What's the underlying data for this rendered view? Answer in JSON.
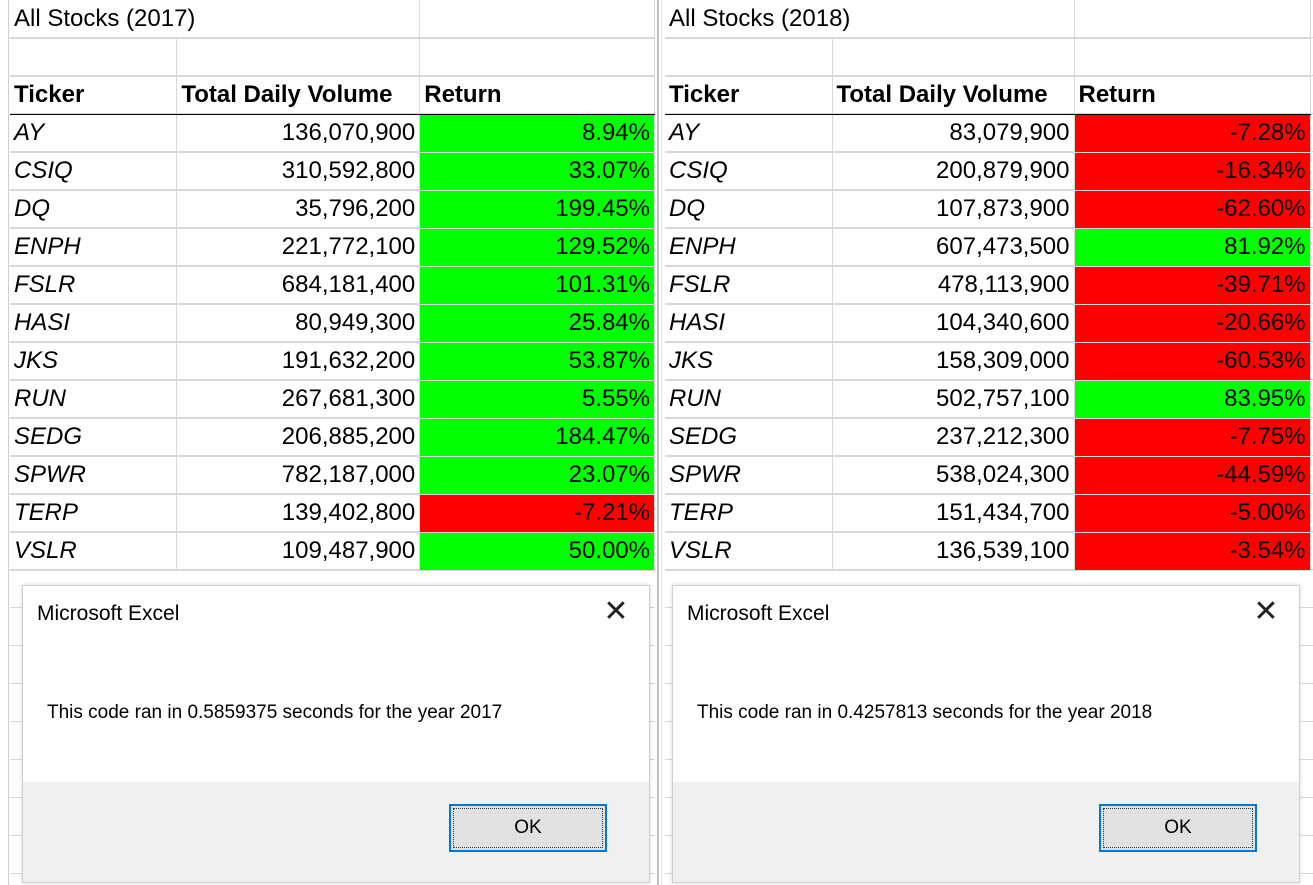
{
  "sheets": [
    {
      "title": "All Stocks (2017)",
      "headers": [
        "Ticker",
        "Total Daily Volume",
        "Return"
      ],
      "rows": [
        {
          "ticker": "AY",
          "volume": "136,070,900",
          "ret": "8.94%",
          "status": "positive"
        },
        {
          "ticker": "CSIQ",
          "volume": "310,592,800",
          "ret": "33.07%",
          "status": "positive"
        },
        {
          "ticker": "DQ",
          "volume": "35,796,200",
          "ret": "199.45%",
          "status": "positive"
        },
        {
          "ticker": "ENPH",
          "volume": "221,772,100",
          "ret": "129.52%",
          "status": "positive"
        },
        {
          "ticker": "FSLR",
          "volume": "684,181,400",
          "ret": "101.31%",
          "status": "positive"
        },
        {
          "ticker": "HASI",
          "volume": "80,949,300",
          "ret": "25.84%",
          "status": "positive"
        },
        {
          "ticker": "JKS",
          "volume": "191,632,200",
          "ret": "53.87%",
          "status": "positive"
        },
        {
          "ticker": "RUN",
          "volume": "267,681,300",
          "ret": "5.55%",
          "status": "positive"
        },
        {
          "ticker": "SEDG",
          "volume": "206,885,200",
          "ret": "184.47%",
          "status": "positive"
        },
        {
          "ticker": "SPWR",
          "volume": "782,187,000",
          "ret": "23.07%",
          "status": "positive"
        },
        {
          "ticker": "TERP",
          "volume": "139,402,800",
          "ret": "-7.21%",
          "status": "negative"
        },
        {
          "ticker": "VSLR",
          "volume": "109,487,900",
          "ret": "50.00%",
          "status": "positive"
        }
      ]
    },
    {
      "title": "All Stocks (2018)",
      "headers": [
        "Ticker",
        "Total Daily Volume",
        "Return"
      ],
      "rows": [
        {
          "ticker": "AY",
          "volume": "83,079,900",
          "ret": "-7.28%",
          "status": "negative"
        },
        {
          "ticker": "CSIQ",
          "volume": "200,879,900",
          "ret": "-16.34%",
          "status": "negative"
        },
        {
          "ticker": "DQ",
          "volume": "107,873,900",
          "ret": "-62.60%",
          "status": "negative"
        },
        {
          "ticker": "ENPH",
          "volume": "607,473,500",
          "ret": "81.92%",
          "status": "positive"
        },
        {
          "ticker": "FSLR",
          "volume": "478,113,900",
          "ret": "-39.71%",
          "status": "negative"
        },
        {
          "ticker": "HASI",
          "volume": "104,340,600",
          "ret": "-20.66%",
          "status": "negative"
        },
        {
          "ticker": "JKS",
          "volume": "158,309,000",
          "ret": "-60.53%",
          "status": "negative"
        },
        {
          "ticker": "RUN",
          "volume": "502,757,100",
          "ret": "83.95%",
          "status": "positive"
        },
        {
          "ticker": "SEDG",
          "volume": "237,212,300",
          "ret": "-7.75%",
          "status": "negative"
        },
        {
          "ticker": "SPWR",
          "volume": "538,024,300",
          "ret": "-44.59%",
          "status": "negative"
        },
        {
          "ticker": "TERP",
          "volume": "151,434,700",
          "ret": "-5.00%",
          "status": "negative"
        },
        {
          "ticker": "VSLR",
          "volume": "136,539,100",
          "ret": "-3.54%",
          "status": "negative"
        }
      ]
    }
  ],
  "dialogs": [
    {
      "title": "Microsoft Excel",
      "message": "This code ran in 0.5859375 seconds for the year 2017",
      "ok_label": "OK",
      "close_icon": "close-icon"
    },
    {
      "title": "Microsoft Excel",
      "message": "This code ran in 0.4257813 seconds for the year 2018",
      "ok_label": "OK",
      "close_icon": "close-icon"
    }
  ],
  "colors": {
    "positive": "#00ff00",
    "negative": "#ff0000",
    "button_focus": "#0078d7"
  }
}
